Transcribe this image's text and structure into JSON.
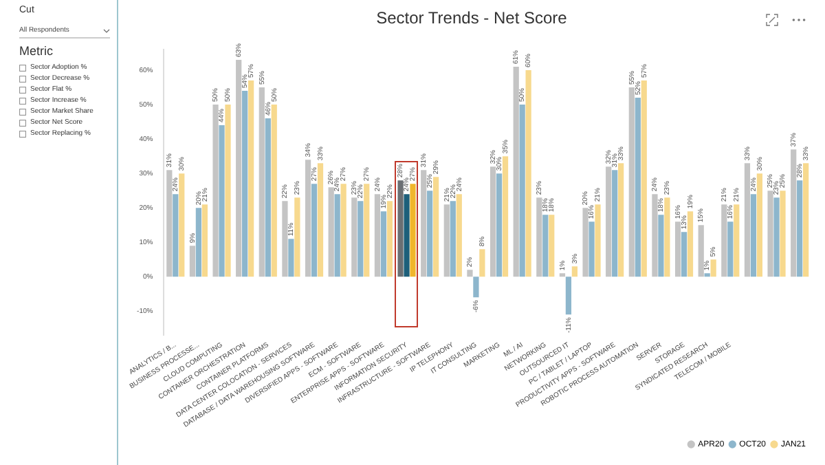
{
  "chart_data": [
    {
      "type": "other",
      "annotations": [
        "Cut",
        "All Respondents",
        "Metric",
        "Sector Adoption %",
        "Sector Decrease %",
        "Sector Flat %",
        "Sector Increase %",
        "Sector Market Share",
        "Sector Net Score",
        "Sector Replacing %"
      ]
    },
    {
      "type": "bar",
      "title": "Sector Trends - Net Score",
      "categories": [
        "ANALYTICS / B...",
        "BUSINESS PROCESSE...",
        "CLOUD COMPUTING",
        "CONTAINER ORCHESTRATION",
        "CONTAINER PLATFORMS",
        "DATA CENTER COLOCATION - SERVICES",
        "DATABASE / DATA WAREHOUSING SOFTWARE",
        "DIVERSIFIED APPS - SOFTWARE",
        "ECM - SOFTWARE",
        "ENTERPRISE APPS - SOFTWARE",
        "INFORMATION SECURITY",
        "INFRASTRUCTURE - SOFTWARE",
        "IP TELEPHONY",
        "IT CONSULTING",
        "MARKETING",
        "ML / AI",
        "NETWORKING",
        "OUTSOURCED IT",
        "PC / TABLET / LAPTOP",
        "PRODUCTIVITY APPS - SOFTWARE",
        "ROBOTIC PROCESS AUTOMATION",
        "SERVER",
        "STORAGE",
        "SYNDICATED RESEARCH",
        "TELECOM / MOBILE",
        null,
        null,
        null
      ],
      "series": [
        {
          "name": "APR20",
          "color": "#c4c4c4",
          "colors": [
            "#c4c4c4",
            "#c4c4c4",
            "#c4c4c4",
            "#c4c4c4",
            "#c4c4c4",
            "#c4c4c4",
            "#c4c4c4",
            "#c4c4c4",
            "#c4c4c4",
            "#c4c4c4",
            "#6b6f73",
            "#c4c4c4",
            "#c4c4c4",
            "#c4c4c4",
            "#c4c4c4",
            "#c4c4c4",
            "#c4c4c4",
            "#c4c4c4",
            "#c4c4c4",
            "#c4c4c4",
            "#c4c4c4",
            "#c4c4c4",
            "#c4c4c4",
            "#c4c4c4",
            "#c4c4c4",
            "#c4c4c4",
            "#c4c4c4",
            "#c4c4c4"
          ],
          "values": [
            31,
            9,
            50,
            63,
            55,
            22,
            34,
            26,
            23,
            24,
            28,
            31,
            21,
            2,
            32,
            61,
            23,
            1,
            20,
            32,
            55,
            24,
            16,
            15,
            21,
            33,
            25,
            37
          ],
          "value_labels": [
            "31%",
            "9%",
            "50%",
            "63%",
            "55%",
            "22%",
            "34%",
            "26%",
            "23%",
            "24%",
            "28%",
            "31%",
            "21%",
            "2%",
            "32%",
            "61%",
            "23%",
            "1%",
            "20%",
            "32%",
            "55%",
            "24%",
            "16%",
            "15%",
            "21%",
            "33%",
            "25%",
            "37%"
          ]
        },
        {
          "name": "OCT20",
          "color": "#8db6cc",
          "colors": [
            "#8db6cc",
            "#8db6cc",
            "#8db6cc",
            "#8db6cc",
            "#8db6cc",
            "#8db6cc",
            "#8db6cc",
            "#8db6cc",
            "#8db6cc",
            "#8db6cc",
            "#1d5f7a",
            "#8db6cc",
            "#8db6cc",
            "#8db6cc",
            "#8db6cc",
            "#8db6cc",
            "#8db6cc",
            "#8db6cc",
            "#8db6cc",
            "#8db6cc",
            "#8db6cc",
            "#8db6cc",
            "#8db6cc",
            "#8db6cc",
            "#8db6cc",
            "#8db6cc",
            "#8db6cc",
            "#8db6cc"
          ],
          "values": [
            24,
            20,
            44,
            54,
            46,
            11,
            27,
            24,
            22,
            19,
            24,
            25,
            22,
            -6,
            30,
            50,
            18,
            -11,
            16,
            31,
            52,
            18,
            13,
            1,
            16,
            24,
            23,
            28
          ],
          "value_labels": [
            "24%",
            "20%",
            "44%",
            "54%",
            "46%",
            "11%",
            "27%",
            "24%",
            "22%",
            "19%",
            "24%",
            "25%",
            "22%",
            "-6%",
            "30%",
            "50%",
            "18%",
            "-11%",
            "16%",
            "31%",
            "52%",
            "18%",
            "13%",
            "1%",
            "16%",
            "24%",
            "23%",
            "28%"
          ]
        },
        {
          "name": "JAN21",
          "color": "#f7d98e",
          "colors": [
            "#f7d98e",
            "#f7d98e",
            "#f7d98e",
            "#f7d98e",
            "#f7d98e",
            "#f7d98e",
            "#f7d98e",
            "#f7d98e",
            "#f7d98e",
            "#f7d98e",
            "#f0b62c",
            "#f7d98e",
            "#f7d98e",
            "#f7d98e",
            "#f7d98e",
            "#f7d98e",
            "#f7d98e",
            "#f7d98e",
            "#f7d98e",
            "#f7d98e",
            "#f7d98e",
            "#f7d98e",
            "#f7d98e",
            "#f7d98e",
            "#f7d98e",
            "#f7d98e",
            "#f7d98e",
            "#f7d98e"
          ],
          "values": [
            30,
            21,
            50,
            57,
            50,
            23,
            33,
            27,
            27,
            22,
            27,
            29,
            24,
            8,
            35,
            60,
            18,
            3,
            21,
            33,
            57,
            23,
            19,
            5,
            21,
            30,
            25,
            33
          ],
          "value_labels": [
            "30%",
            "21%",
            "50%",
            "57%",
            "50%",
            "23%",
            "33%",
            "27%",
            "27%",
            "22%",
            "27%",
            "29%",
            "24%",
            "8%",
            "35%",
            "60%",
            "18%",
            "3%",
            "21%",
            "33%",
            "57%",
            "23%",
            "19%",
            "5%",
            "21%",
            "30%",
            "25%",
            "33%"
          ]
        }
      ],
      "ylim": [
        -17,
        66
      ],
      "yticks": [
        {
          "value": -10,
          "label": "-10%"
        },
        {
          "value": 0,
          "label": "0%"
        },
        {
          "value": 10,
          "label": "10%"
        },
        {
          "value": 20,
          "label": "20%"
        },
        {
          "value": 30,
          "label": "30%"
        },
        {
          "value": 40,
          "label": "40%"
        },
        {
          "value": 50,
          "label": "50%"
        },
        {
          "value": 60,
          "label": "60%"
        }
      ],
      "grid": false,
      "legend": "bottom right"
    }
  ]
}
